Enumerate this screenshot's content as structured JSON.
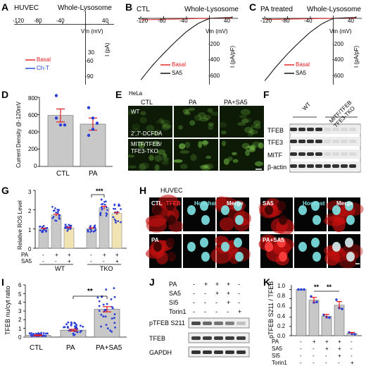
{
  "panels": {
    "A": "A",
    "B": "B",
    "C": "C",
    "D": "D",
    "E": "E",
    "F": "F",
    "G": "G",
    "H": "H",
    "I": "I",
    "J": "J",
    "K": "K"
  },
  "colors": {
    "red": "#e31a1c",
    "blue": "#1f3fd8",
    "black": "#000000",
    "bar_gray": "#c8c8c8",
    "bar_tan": "#f2e3b3",
    "dot_blue": "#2b3fd6",
    "err_red": "#e31a1c",
    "hoechst_cyan": "#7fe6e6",
    "tfeb_red": "#c81010",
    "green": "#7cc94a"
  },
  "iv_common": {
    "title": "Whole-Lysosome",
    "x_ticks": [
      "-120",
      "-80",
      "-40",
      "40"
    ]
  },
  "panel_a": {
    "cell": "HUVEC",
    "xunit": "Vm (mV)",
    "yunit": "I (pA)",
    "y_ticks": [
      "30",
      "-60",
      "-90"
    ],
    "legend": [
      "Basal",
      "Ch-T"
    ]
  },
  "panel_b": {
    "cond": "CTL",
    "xunit": "Vm (mV)",
    "yunit": "I (pA/pF)",
    "y_ticks": [
      "-200",
      "-400",
      "-600"
    ],
    "legend": [
      "Basal",
      "SA5"
    ]
  },
  "panel_c": {
    "cond": "PA treated",
    "xunit": "Vm (mV)",
    "yunit": "I (pA/pF)",
    "y_ticks": [
      "-200",
      "-400",
      "-600"
    ],
    "legend": [
      "Basal",
      "SA5"
    ]
  },
  "panel_d": {
    "ylabel": "Current Density @-120mV",
    "y_ticks": [
      "0",
      "200",
      "400",
      "600",
      "800"
    ],
    "categories": [
      "CTL",
      "PA"
    ]
  },
  "panel_e": {
    "cell": "HeLa",
    "cols": [
      "CTL",
      "PA",
      "PA+SA5"
    ],
    "rows": [
      "WT",
      "MITF/TFEB/\nTFE3-TKO"
    ],
    "dye": "2',7'-DCFDA"
  },
  "panel_f": {
    "cols": [
      "WT",
      "MITF/TFEB\nTFE3-TKO"
    ],
    "rows": [
      "TFEB",
      "TFE3",
      "MITF",
      "β-actin"
    ]
  },
  "panel_g": {
    "ylabel": "Relative ROS Level",
    "y_ticks": [
      "0",
      "1",
      "2",
      "3"
    ],
    "row_pa": "PA",
    "row_sa5": "SA5",
    "pa_signs": [
      "-",
      "+",
      "+",
      "-",
      "+",
      "+"
    ],
    "sa5_signs": [
      "-",
      "-",
      "+",
      "-",
      "-",
      "+"
    ],
    "groups": [
      "WT",
      "TKO"
    ],
    "sig": "***"
  },
  "panel_h": {
    "cell": "HUVEC",
    "top_labels": [
      "CTL",
      "TFEB",
      "Hoechst",
      "Merge",
      "SA5",
      "Hoechst",
      "Merge"
    ],
    "bottom_labels": [
      "PA",
      "PA+SA5"
    ]
  },
  "panel_i": {
    "ylabel": "TFEB nu/cyt ratio",
    "y_ticks": [
      "0",
      "1",
      "2",
      "3",
      "4",
      "5",
      "6"
    ],
    "categories": [
      "CTL",
      "PA",
      "PA+SA5"
    ],
    "sig": "**"
  },
  "panel_j": {
    "row_labels": [
      "PA",
      "SA5",
      "SI5",
      "Torin1"
    ],
    "signs": [
      [
        "-",
        "+",
        "+",
        "+",
        "-"
      ],
      [
        "-",
        "-",
        "+",
        "+",
        "-"
      ],
      [
        "-",
        "-",
        "-",
        "+",
        "-"
      ],
      [
        "-",
        "-",
        "-",
        "-",
        "+"
      ]
    ],
    "blots": [
      "pTFEB S211",
      "TFEB",
      "GAPDH"
    ]
  },
  "panel_k": {
    "ylabel": "pTFEB S211 / TFEB",
    "y_ticks": [
      "0.0",
      "0.2",
      "0.4",
      "0.6",
      "0.8",
      "1.0"
    ],
    "row_labels": [
      "PA",
      "SA5",
      "SI5",
      "Torin1"
    ],
    "signs": [
      [
        "-",
        "+",
        "+",
        "+",
        "-"
      ],
      [
        "-",
        "-",
        "+",
        "+",
        "-"
      ],
      [
        "-",
        "-",
        "-",
        "+",
        "-"
      ],
      [
        "-",
        "-",
        "-",
        "-",
        "+"
      ]
    ],
    "sig": [
      "**",
      "**"
    ]
  },
  "chart_data": [
    {
      "panel": "A",
      "type": "line",
      "xlabel": "Vm (mV)",
      "ylabel": "I (pA)",
      "xlim": [
        -125,
        50
      ],
      "ylim": [
        -70,
        15
      ],
      "series": [
        {
          "name": "Basal",
          "color": "#e31a1c",
          "x": [
            -120,
            -80,
            -40,
            0,
            40
          ],
          "y": [
            -14,
            -9,
            -5,
            0,
            3
          ]
        },
        {
          "name": "Ch-T",
          "color": "#1f3fd8",
          "x": [
            -120,
            -100,
            -80,
            -60,
            -40,
            -20,
            0,
            20,
            40
          ],
          "y": [
            -58,
            -46,
            -34,
            -24,
            -14,
            -6,
            0,
            5,
            10
          ]
        }
      ]
    },
    {
      "panel": "B",
      "type": "line",
      "xlabel": "Vm (mV)",
      "ylabel": "I (pA/pF)",
      "xlim": [
        -125,
        50
      ],
      "ylim": [
        -700,
        30
      ],
      "series": [
        {
          "name": "Basal",
          "color": "#e31a1c",
          "x": [
            -120,
            0,
            40
          ],
          "y": [
            -15,
            0,
            3
          ]
        },
        {
          "name": "SA5",
          "color": "#000000",
          "x": [
            -120,
            -100,
            -80,
            -60,
            -40,
            -20,
            0,
            20,
            40
          ],
          "y": [
            -650,
            -500,
            -370,
            -250,
            -140,
            -55,
            0,
            5,
            10
          ]
        }
      ]
    },
    {
      "panel": "C",
      "type": "line",
      "xlabel": "Vm (mV)",
      "ylabel": "I (pA/pF)",
      "xlim": [
        -125,
        50
      ],
      "ylim": [
        -700,
        30
      ],
      "series": [
        {
          "name": "Basal",
          "color": "#e31a1c",
          "x": [
            -120,
            0,
            40
          ],
          "y": [
            -12,
            0,
            3
          ]
        },
        {
          "name": "SA5",
          "color": "#000000",
          "x": [
            -120,
            -100,
            -80,
            -60,
            -40,
            -20,
            0,
            20,
            40
          ],
          "y": [
            -660,
            -510,
            -375,
            -255,
            -145,
            -58,
            0,
            5,
            10
          ]
        }
      ]
    },
    {
      "panel": "D",
      "type": "bar",
      "ylabel": "Current Density @-120mV",
      "ylim": [
        0,
        800
      ],
      "categories": [
        "CTL",
        "PA"
      ],
      "values": [
        590,
        490
      ],
      "errors": [
        75,
        70
      ],
      "points": [
        [
          820,
          480,
          480,
          560
        ],
        [
          680,
          560,
          500,
          360,
          430
        ]
      ]
    },
    {
      "panel": "G",
      "type": "bar",
      "ylabel": "Relative ROS Level",
      "ylim": [
        0,
        3
      ],
      "groups": [
        "WT",
        "TKO"
      ],
      "values": [
        1.0,
        1.72,
        1.05,
        1.02,
        2.1,
        1.8
      ],
      "errors": [
        0.04,
        0.05,
        0.04,
        0.04,
        0.08,
        0.06
      ],
      "colors": [
        "#c8c8c8",
        "#c8c8c8",
        "#f2e3b3",
        "#c8c8c8",
        "#c8c8c8",
        "#f2e3b3"
      ]
    },
    {
      "panel": "I",
      "type": "bar",
      "ylabel": "TFEB nu/cyt ratio",
      "ylim": [
        0,
        6
      ],
      "categories": [
        "CTL",
        "PA",
        "PA+SA5"
      ],
      "values": [
        0.2,
        0.8,
        3.2
      ],
      "errors": [
        0.05,
        0.1,
        0.3
      ],
      "spread": [
        [
          0.1,
          0.5
        ],
        [
          0.2,
          1.9
        ],
        [
          0.6,
          6.0
        ]
      ]
    },
    {
      "panel": "K",
      "type": "bar",
      "ylabel": "pTFEB S211 / TFEB",
      "ylim": [
        0,
        1.1
      ],
      "values": [
        1.0,
        0.77,
        0.42,
        0.66,
        0.05
      ],
      "errors": [
        0.0,
        0.06,
        0.04,
        0.08,
        0.02
      ],
      "points": [
        [
          1.0,
          1.0,
          1.0
        ],
        [
          0.85,
          0.72,
          0.73
        ],
        [
          0.45,
          0.4,
          0.39
        ],
        [
          0.78,
          0.6,
          0.58
        ],
        [
          0.07,
          0.04,
          0.03
        ]
      ]
    }
  ]
}
